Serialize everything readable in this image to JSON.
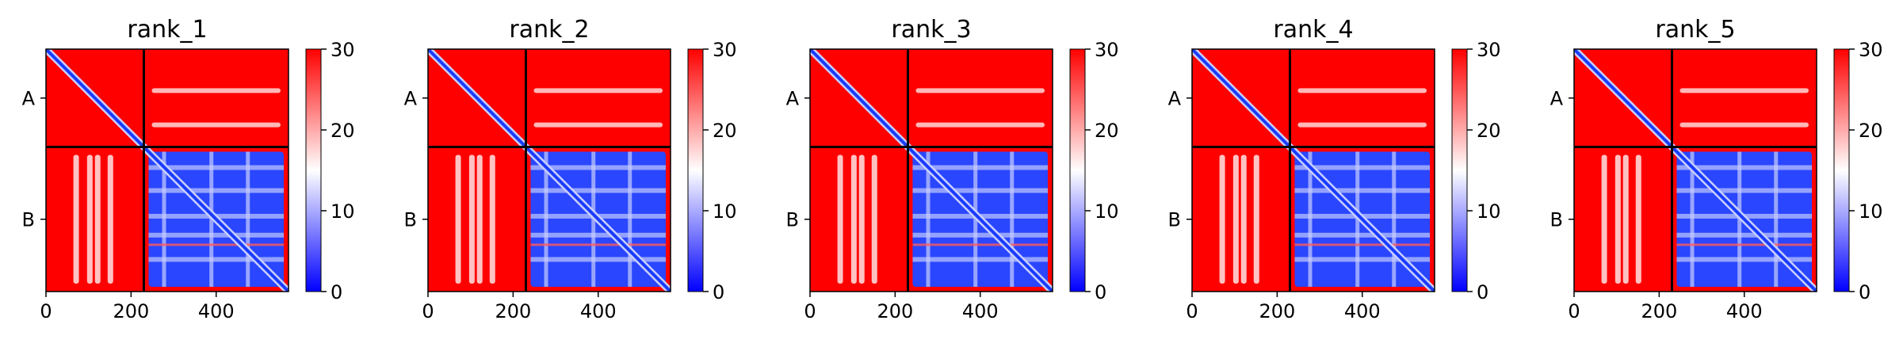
{
  "chart_data": [
    {
      "type": "heatmap",
      "title": "rank_1",
      "xlabel": "",
      "ylabel": "",
      "x_ticks": [
        "0",
        "200",
        "400"
      ],
      "x_tick_values": [
        0,
        200,
        400
      ],
      "y_ticks": [
        "A",
        "B"
      ],
      "xlim": [
        0,
        570
      ],
      "chain_boundary": 230,
      "colorbar": {
        "min": 0,
        "max": 30,
        "ticks": [
          "0",
          "10",
          "20",
          "30"
        ],
        "tick_values": [
          0,
          10,
          20,
          30
        ],
        "colors": [
          "#0000ff",
          "#ffffff",
          "#ff0000"
        ]
      }
    },
    {
      "type": "heatmap",
      "title": "rank_2",
      "xlabel": "",
      "ylabel": "",
      "x_ticks": [
        "0",
        "200",
        "400"
      ],
      "x_tick_values": [
        0,
        200,
        400
      ],
      "y_ticks": [
        "A",
        "B"
      ],
      "xlim": [
        0,
        570
      ],
      "chain_boundary": 230,
      "colorbar": {
        "min": 0,
        "max": 30,
        "ticks": [
          "0",
          "10",
          "20",
          "30"
        ],
        "tick_values": [
          0,
          10,
          20,
          30
        ],
        "colors": [
          "#0000ff",
          "#ffffff",
          "#ff0000"
        ]
      }
    },
    {
      "type": "heatmap",
      "title": "rank_3",
      "xlabel": "",
      "ylabel": "",
      "x_ticks": [
        "0",
        "200",
        "400"
      ],
      "x_tick_values": [
        0,
        200,
        400
      ],
      "y_ticks": [
        "A",
        "B"
      ],
      "xlim": [
        0,
        570
      ],
      "chain_boundary": 230,
      "colorbar": {
        "min": 0,
        "max": 30,
        "ticks": [
          "0",
          "10",
          "20",
          "30"
        ],
        "tick_values": [
          0,
          10,
          20,
          30
        ],
        "colors": [
          "#0000ff",
          "#ffffff",
          "#ff0000"
        ]
      }
    },
    {
      "type": "heatmap",
      "title": "rank_4",
      "xlabel": "",
      "ylabel": "",
      "x_ticks": [
        "0",
        "200",
        "400"
      ],
      "x_tick_values": [
        0,
        200,
        400
      ],
      "y_ticks": [
        "A",
        "B"
      ],
      "xlim": [
        0,
        570
      ],
      "chain_boundary": 230,
      "colorbar": {
        "min": 0,
        "max": 30,
        "ticks": [
          "0",
          "10",
          "20",
          "30"
        ],
        "tick_values": [
          0,
          10,
          20,
          30
        ],
        "colors": [
          "#0000ff",
          "#ffffff",
          "#ff0000"
        ]
      }
    },
    {
      "type": "heatmap",
      "title": "rank_5",
      "xlabel": "",
      "ylabel": "",
      "x_ticks": [
        "0",
        "200",
        "400"
      ],
      "x_tick_values": [
        0,
        200,
        400
      ],
      "y_ticks": [
        "A",
        "B"
      ],
      "xlim": [
        0,
        570
      ],
      "chain_boundary": 230,
      "colorbar": {
        "min": 0,
        "max": 30,
        "ticks": [
          "0",
          "10",
          "20",
          "30"
        ],
        "tick_values": [
          0,
          10,
          20,
          30
        ],
        "colors": [
          "#0000ff",
          "#ffffff",
          "#ff0000"
        ]
      }
    }
  ]
}
